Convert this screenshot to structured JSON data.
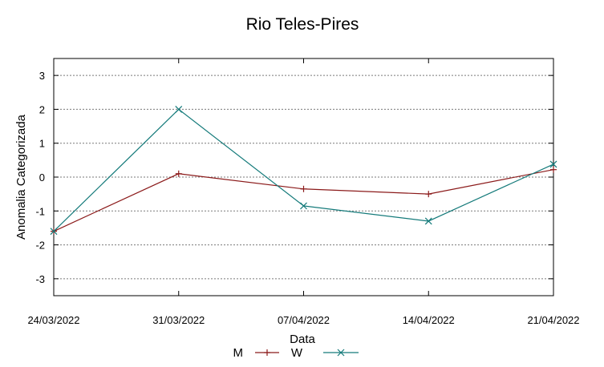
{
  "chart_data": {
    "type": "line",
    "title": "Rio Teles-Pires",
    "xlabel": "Data",
    "ylabel": "Anomalia Categorizada",
    "x": [
      "24/03/2022",
      "31/03/2022",
      "07/04/2022",
      "14/04/2022",
      "21/04/2022"
    ],
    "ylim": [
      -3.5,
      3.5
    ],
    "yticks": [
      "-3",
      "-2",
      "-1",
      "0",
      "1",
      "2",
      "3"
    ],
    "grid": true,
    "legend_position": "bottom",
    "series": [
      {
        "name": "M",
        "values": [
          -1.6,
          0.1,
          -0.35,
          -0.5,
          0.22
        ],
        "color": "#8b1a1a",
        "marker": "plus"
      },
      {
        "name": "W",
        "values": [
          -1.6,
          2.0,
          -0.85,
          -1.3,
          0.38
        ],
        "color": "#147a7a",
        "marker": "x"
      }
    ]
  }
}
